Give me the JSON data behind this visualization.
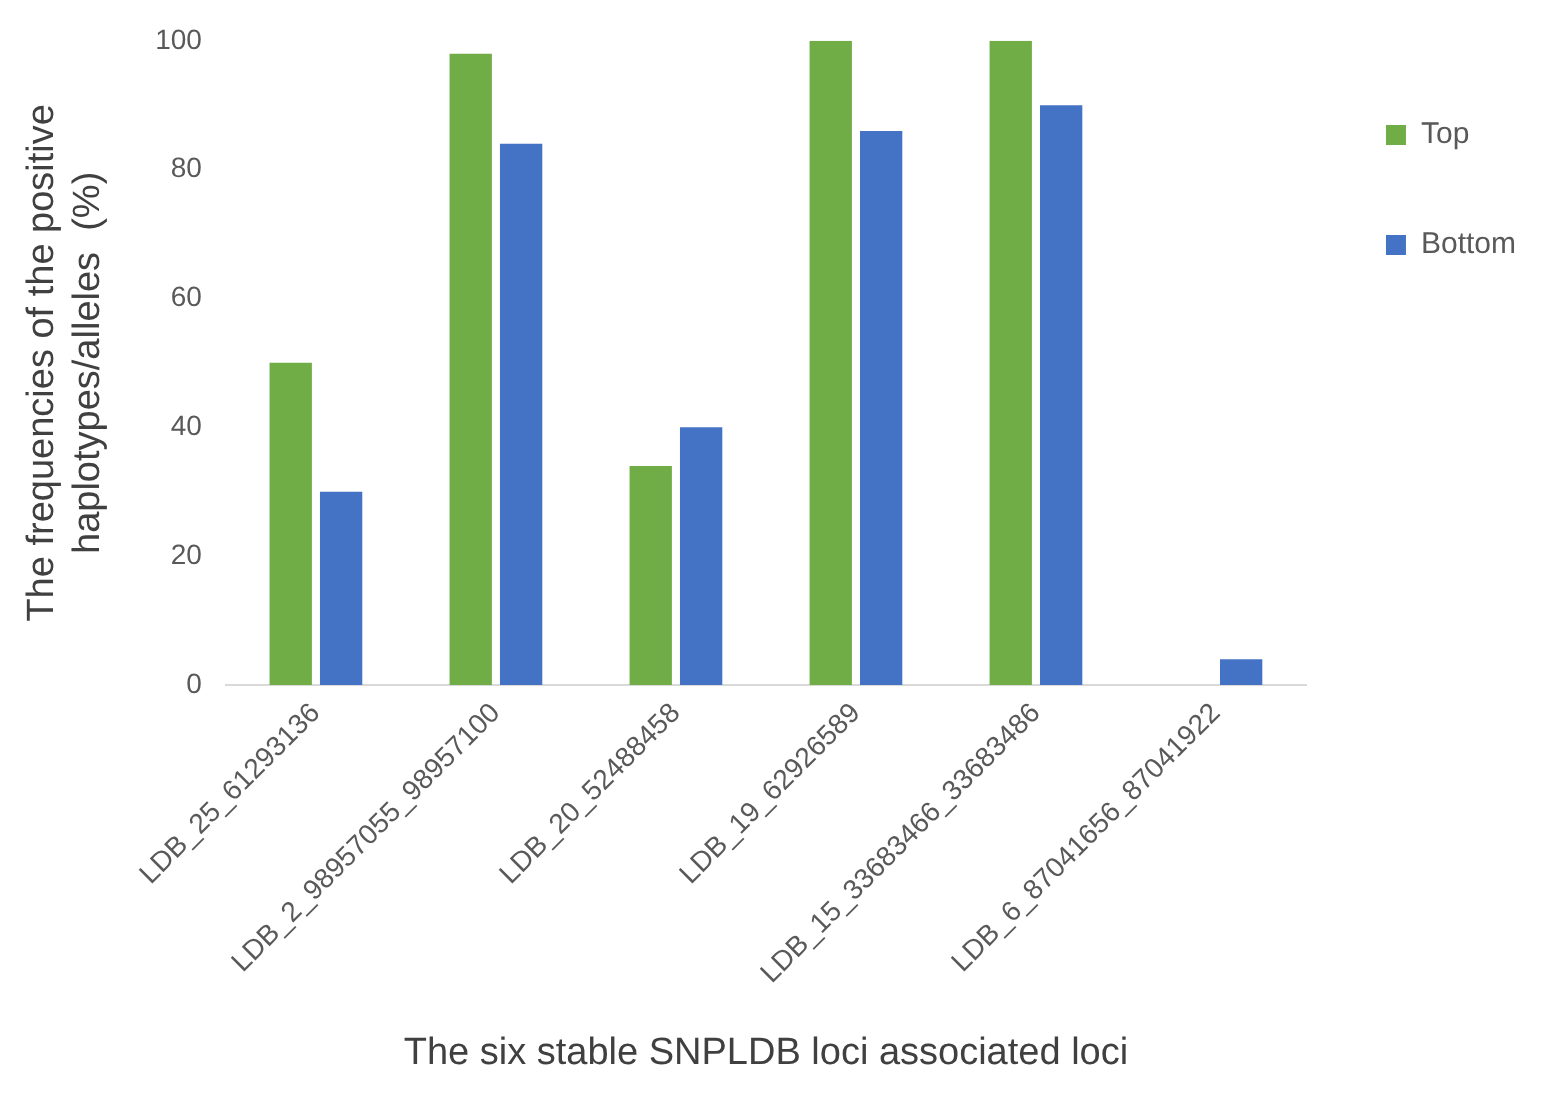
{
  "chart_data": {
    "type": "bar",
    "xlabel": "The six stable SNPLDB loci associated loci",
    "ylabel": "The frequencies of the positive haplotypes/alleles  (%)",
    "categories": [
      "LDB_25_61293136",
      "LDB_2_98957055_98957100",
      "LDB_20_52488458",
      "LDB_19_62926589",
      "LDB_15_33683466_33683486",
      "LDB_6_87041656_87041922"
    ],
    "series": [
      {
        "name": "Top",
        "color": "#70ad47",
        "values": [
          50,
          98,
          34,
          100,
          100,
          0
        ]
      },
      {
        "name": "Bottom",
        "color": "#4472c4",
        "values": [
          30,
          84,
          40,
          86,
          90,
          4
        ]
      }
    ],
    "ylim": [
      0,
      100
    ],
    "yticks": [
      0,
      20,
      40,
      60,
      80,
      100
    ],
    "grid": false,
    "legend": "top right"
  }
}
